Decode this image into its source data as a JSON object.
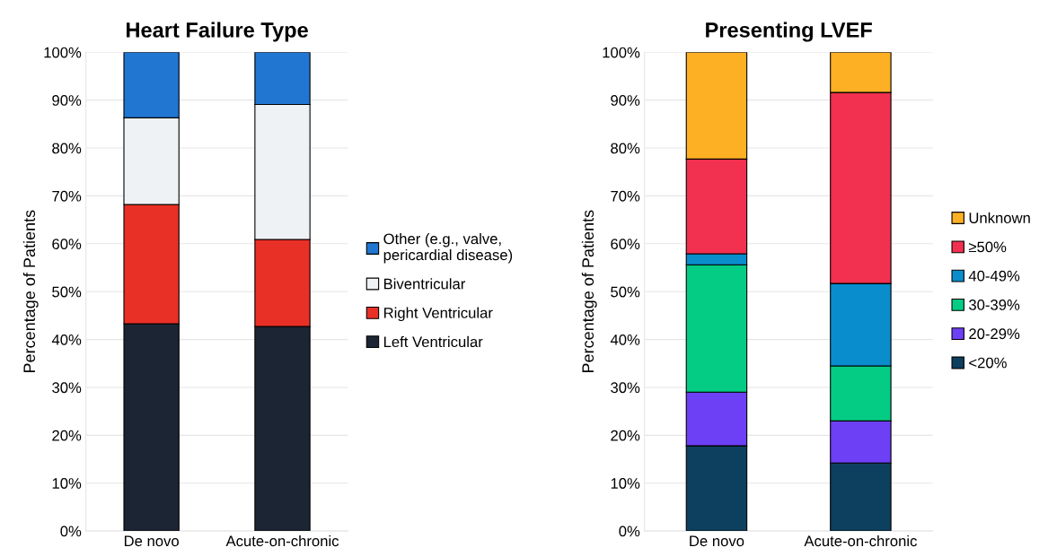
{
  "chart_data": [
    {
      "type": "bar",
      "stacked": true,
      "title": "Heart Failure Type",
      "ylabel": "Percentage of Patients",
      "categories": [
        "De novo",
        "Acute-on-chronic"
      ],
      "series": [
        {
          "name": "Left Ventricular",
          "color": "#1c2533",
          "values": [
            43.3,
            42.7
          ]
        },
        {
          "name": "Right Ventricular",
          "color": "#e83027",
          "values": [
            24.9,
            18.2
          ]
        },
        {
          "name": "Biventricular",
          "color": "#eef2f5",
          "values": [
            18.1,
            28.2
          ]
        },
        {
          "name": "Other (e.g., valve,\npericardial disease)",
          "color": "#2176d2",
          "values": [
            13.7,
            10.9
          ]
        }
      ],
      "ylim": [
        0,
        100
      ],
      "yticks": [
        {
          "value": 0,
          "label": "0%"
        },
        {
          "value": 10,
          "label": "10%"
        },
        {
          "value": 20,
          "label": "20%"
        },
        {
          "value": 30,
          "label": "30%"
        },
        {
          "value": 40,
          "label": "40%"
        },
        {
          "value": 50,
          "label": "50%"
        },
        {
          "value": 60,
          "label": "60%"
        },
        {
          "value": 70,
          "label": "70%"
        },
        {
          "value": 80,
          "label": "80%"
        },
        {
          "value": 90,
          "label": "90%"
        },
        {
          "value": 100,
          "label": "100%"
        }
      ],
      "grid": "y",
      "legend": "right"
    },
    {
      "type": "bar",
      "stacked": true,
      "title": "Presenting LVEF",
      "ylabel": "Percentage of Patients",
      "categories": [
        "De novo",
        "Acute-on-chronic"
      ],
      "series": [
        {
          "name": "<20%",
          "color": "#0d3f5e",
          "values": [
            17.8,
            14.2
          ]
        },
        {
          "name": "20-29%",
          "color": "#6d3ff5",
          "values": [
            11.2,
            8.8
          ]
        },
        {
          "name": "30-39%",
          "color": "#04cc84",
          "values": [
            26.6,
            11.5
          ]
        },
        {
          "name": "40-49%",
          "color": "#0a8dcc",
          "values": [
            2.3,
            17.2
          ]
        },
        {
          "name": "≥50%",
          "color": "#f2304f",
          "values": [
            19.8,
            39.9
          ]
        },
        {
          "name": "Unknown",
          "color": "#fdb023",
          "values": [
            22.3,
            8.4
          ]
        }
      ],
      "ylim": [
        0,
        100
      ],
      "yticks": [
        {
          "value": 0,
          "label": "0%"
        },
        {
          "value": 10,
          "label": "10%"
        },
        {
          "value": 20,
          "label": "20%"
        },
        {
          "value": 30,
          "label": "30%"
        },
        {
          "value": 40,
          "label": "40%"
        },
        {
          "value": 50,
          "label": "50%"
        },
        {
          "value": 60,
          "label": "60%"
        },
        {
          "value": 70,
          "label": "70%"
        },
        {
          "value": 80,
          "label": "80%"
        },
        {
          "value": 90,
          "label": "90%"
        },
        {
          "value": 100,
          "label": "100%"
        }
      ],
      "grid": "y",
      "legend": "right"
    }
  ]
}
